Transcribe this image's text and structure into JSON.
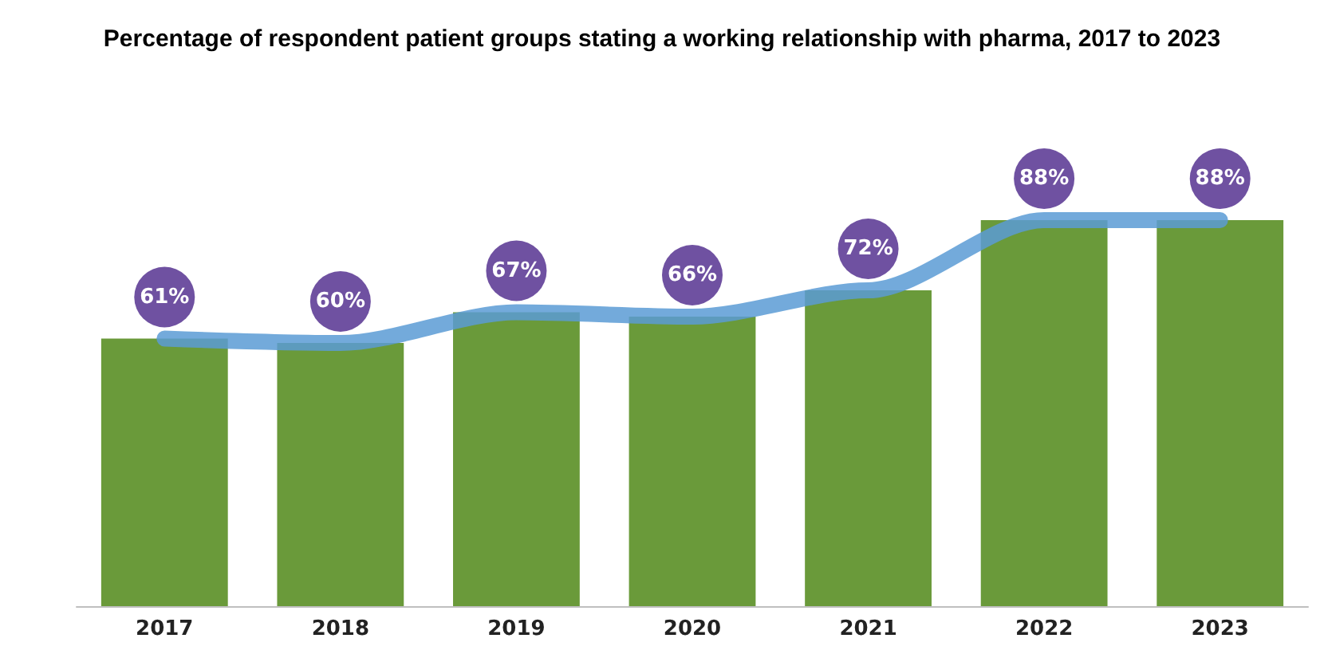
{
  "chart_data": {
    "type": "bar",
    "title": "Percentage of respondent patient groups stating a working relationship with pharma, 2017 to 2023",
    "categories": [
      "2017",
      "2018",
      "2019",
      "2020",
      "2021",
      "2022",
      "2023"
    ],
    "series": [
      {
        "color": "#6a9a3a",
        "values": [
          61,
          60,
          67,
          66,
          72,
          88,
          88
        ]
      },
      {
        "type": "line",
        "color": "#5b9bd5",
        "values": [
          61,
          60,
          67,
          66,
          72,
          88,
          88
        ],
        "value_labels": [
          "61%",
          "60%",
          "67%",
          "66%",
          "72%",
          "88%",
          "88%"
        ]
      }
    ],
    "tick_labels": "x",
    "marker": "none"
  }
}
